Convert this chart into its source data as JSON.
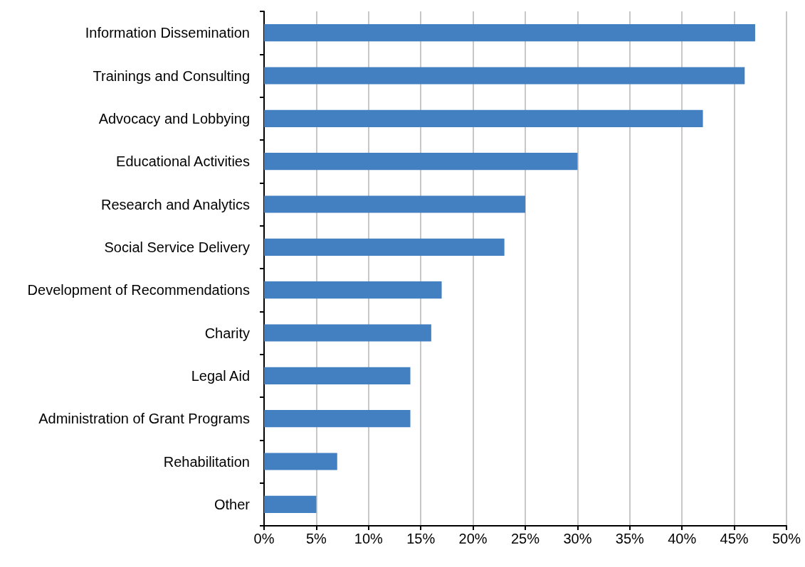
{
  "chart_data": {
    "type": "bar",
    "orientation": "horizontal",
    "categories": [
      "Information Dissemination",
      "Trainings and Consulting",
      "Advocacy and Lobbying",
      "Educational Activities",
      "Research and Analytics",
      "Social Service Delivery",
      "Development of Recommendations",
      "Charity",
      "Legal Aid",
      "Administration of Grant Programs",
      "Rehabilitation",
      "Other"
    ],
    "values": [
      47,
      46,
      42,
      30,
      25,
      23,
      17,
      16,
      14,
      14,
      7,
      5
    ],
    "color": "#4380c1",
    "xlim": [
      0,
      50
    ],
    "xticks": [
      {
        "value": 0,
        "label": "0%"
      },
      {
        "value": 5,
        "label": "5%"
      },
      {
        "value": 10,
        "label": "10%"
      },
      {
        "value": 15,
        "label": "15%"
      },
      {
        "value": 20,
        "label": "20%"
      },
      {
        "value": 25,
        "label": "25%"
      },
      {
        "value": 30,
        "label": "30%"
      },
      {
        "value": 35,
        "label": "35%"
      },
      {
        "value": 40,
        "label": "40%"
      },
      {
        "value": 45,
        "label": "45%"
      },
      {
        "value": 50,
        "label": "50%"
      }
    ],
    "grid": "x"
  }
}
